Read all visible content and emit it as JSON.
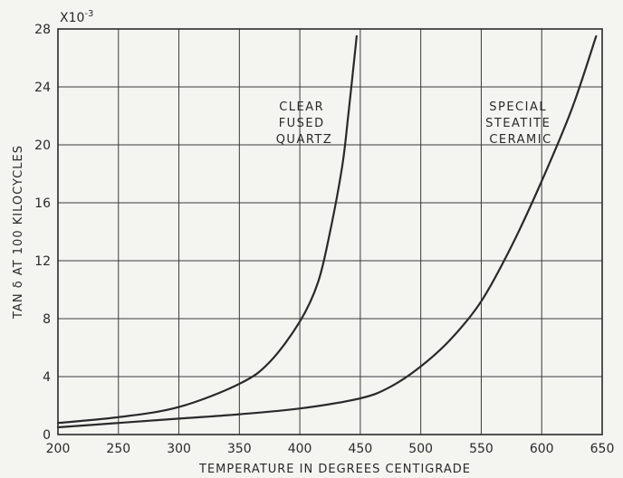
{
  "chart_data": {
    "type": "line",
    "title": "",
    "xlabel": "TEMPERATURE IN DEGREES CENTIGRADE",
    "ylabel": "TAN δ AT 100 KILOCYCLES",
    "y_multiplier": "X10",
    "y_multiplier_exp": "-3",
    "xlim": [
      200,
      650
    ],
    "ylim": [
      0,
      28
    ],
    "xticks": [
      200,
      250,
      300,
      350,
      400,
      450,
      500,
      550,
      600,
      650
    ],
    "yticks": [
      0,
      4,
      8,
      12,
      16,
      20,
      24,
      28
    ],
    "grid": true,
    "legend": "none",
    "series": [
      {
        "x": [
          200,
          250,
          300,
          350,
          375,
          400,
          415,
          425,
          435,
          440,
          447
        ],
        "y": [
          0.8,
          1.2,
          1.9,
          3.5,
          5.0,
          7.8,
          10.5,
          14,
          18.5,
          22,
          27.5
        ]
      },
      {
        "x": [
          200,
          250,
          300,
          350,
          400,
          450,
          475,
          500,
          525,
          550,
          575,
          600,
          625,
          645
        ],
        "y": [
          0.5,
          0.8,
          1.1,
          1.4,
          1.8,
          2.5,
          3.3,
          4.7,
          6.6,
          9.2,
          13.0,
          17.5,
          22.5,
          27.5
        ]
      }
    ],
    "annotations": [
      {
        "lines": [
          "CLEAR",
          "FUSED",
          "QUARTZ"
        ]
      },
      {
        "lines": [
          "SPECIAL",
          "STEATITE",
          "CERAMIC"
        ]
      }
    ]
  }
}
